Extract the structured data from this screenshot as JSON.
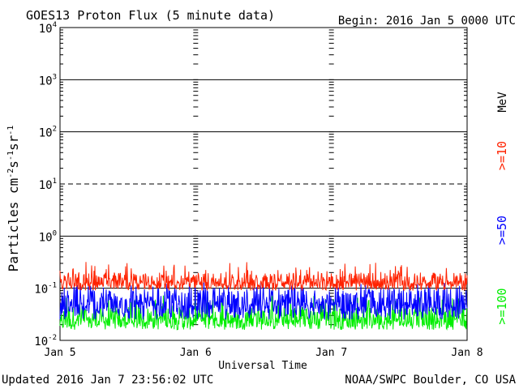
{
  "chart_data": {
    "type": "line",
    "title": "GOES13 Proton Flux (5 minute data)",
    "begin_label": "Begin: 2016 Jan 5 0000 UTC",
    "xlabel": "Universal Time",
    "ylabel": "Particles cm",
    "ylabel_sup1": "-2",
    "ylabel_mid1": "s",
    "ylabel_sup2": "-1",
    "ylabel_mid2": "sr",
    "ylabel_sup3": "-1",
    "x_ticks": [
      "Jan 5",
      "Jan 6",
      "Jan 7",
      "Jan 8"
    ],
    "y_ticks": [
      {
        "base": "10",
        "exp": "4"
      },
      {
        "base": "10",
        "exp": "3"
      },
      {
        "base": "10",
        "exp": "2"
      },
      {
        "base": "10",
        "exp": "1"
      },
      {
        "base": "10",
        "exp": "0"
      },
      {
        "base": "10",
        "exp": "-1"
      },
      {
        "base": "10",
        "exp": "-2"
      }
    ],
    "y_scale": "log",
    "ylim": [
      0.01,
      10000
    ],
    "xlim_days": [
      0,
      3
    ],
    "threshold_lines": [
      {
        "value": 1000,
        "style": "solid"
      },
      {
        "value": 100,
        "style": "solid"
      },
      {
        "value": 10,
        "style": "dashed"
      },
      {
        "value": 1,
        "style": "solid"
      },
      {
        "value": 0.1,
        "style": "solid"
      }
    ],
    "series": [
      {
        "name": ">=10",
        "color": "#ff2200",
        "mean": 0.14,
        "min": 0.09,
        "max": 0.32
      },
      {
        "name": ">=50",
        "color": "#0000ff",
        "mean": 0.055,
        "min": 0.025,
        "max": 0.13
      },
      {
        "name": ">=100",
        "color": "#00ee00",
        "mean": 0.028,
        "min": 0.016,
        "max": 0.075
      }
    ],
    "legend_unit": "MeV",
    "legend_position": "right"
  },
  "footer": {
    "updated": "Updated 2016 Jan  7 23:56:02 UTC",
    "source": "NOAA/SWPC Boulder, CO USA"
  }
}
